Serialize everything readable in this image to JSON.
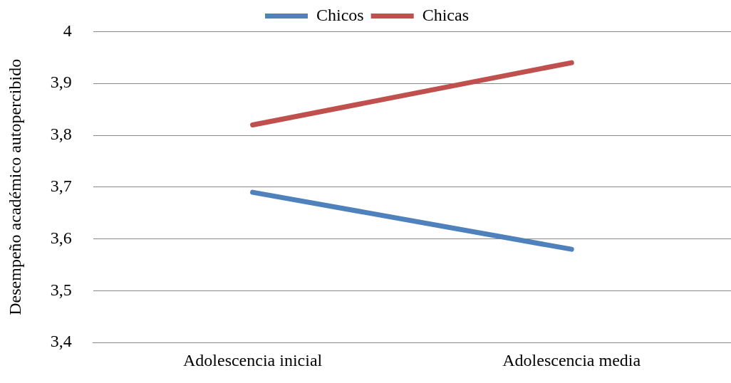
{
  "chart_data": {
    "type": "line",
    "ylabel": "Desempeño académico autopercibido",
    "categories": [
      "Adolescencia inicial",
      "Adolescencia media"
    ],
    "series": [
      {
        "name": "Chicos",
        "color": "#4f81bd",
        "values": [
          3.69,
          3.58
        ]
      },
      {
        "name": "Chicas",
        "color": "#c0504d",
        "values": [
          3.82,
          3.94
        ]
      }
    ],
    "ylim": [
      3.4,
      4
    ],
    "yticks": [
      {
        "value": 3.4,
        "label": "3,4"
      },
      {
        "value": 3.5,
        "label": "3,5"
      },
      {
        "value": 3.6,
        "label": "3,6"
      },
      {
        "value": 3.7,
        "label": "3,7"
      },
      {
        "value": 3.8,
        "label": "3,8"
      },
      {
        "value": 3.9,
        "label": "3,9"
      },
      {
        "value": 4,
        "label": "4"
      }
    ],
    "grid": "y",
    "legend": "top",
    "marker": "none",
    "line_style": "solid"
  }
}
